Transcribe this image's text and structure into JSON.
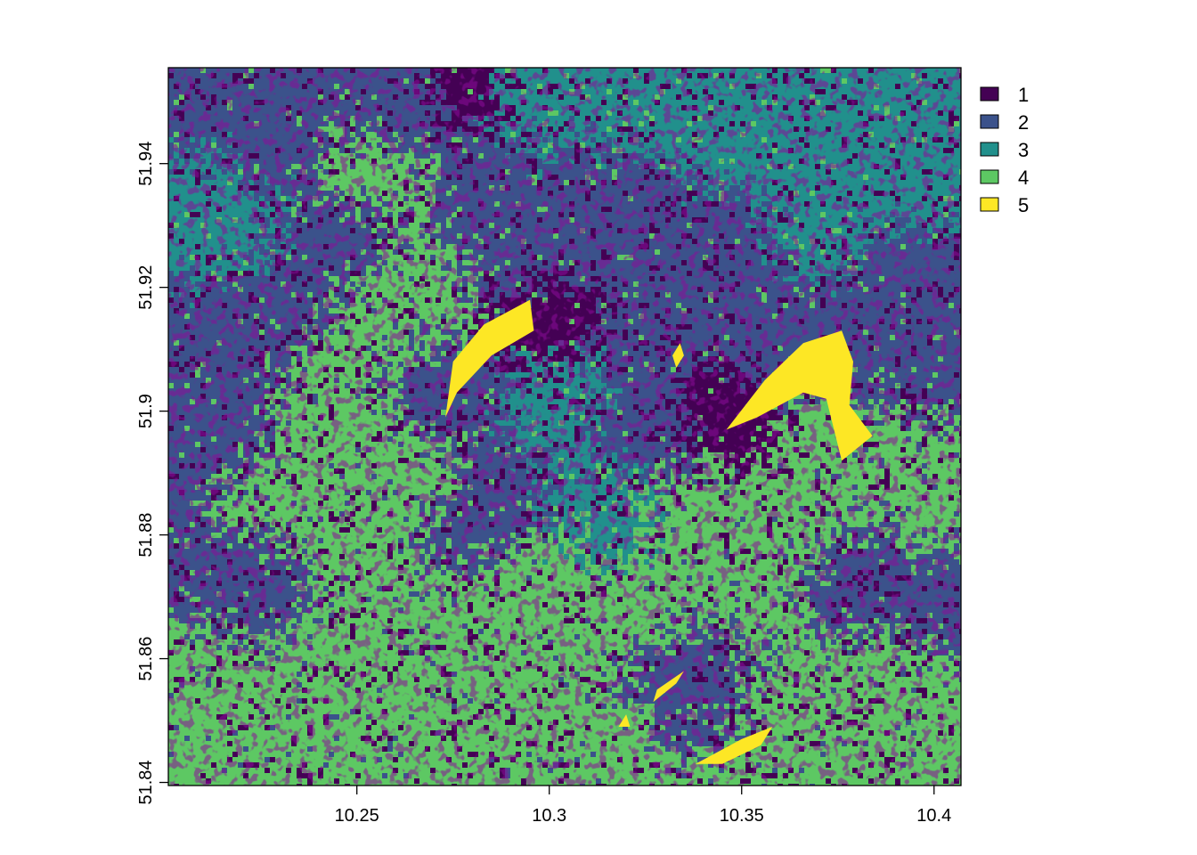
{
  "chart_data": {
    "type": "heatmap",
    "title": "",
    "xlabel": "",
    "ylabel": "",
    "xlim": [
      10.201,
      10.407
    ],
    "ylim": [
      51.8395,
      51.9555
    ],
    "x_ticks": [
      {
        "value": 10.25,
        "label": "10.25"
      },
      {
        "value": 10.3,
        "label": "10.3"
      },
      {
        "value": 10.35,
        "label": "10.35"
      },
      {
        "value": 10.4,
        "label": "10.4"
      }
    ],
    "y_ticks": [
      {
        "value": 51.84,
        "label": "51.84"
      },
      {
        "value": 51.86,
        "label": "51.86"
      },
      {
        "value": 51.88,
        "label": "51.88"
      },
      {
        "value": 51.9,
        "label": "51.9"
      },
      {
        "value": 51.92,
        "label": "51.92"
      },
      {
        "value": 51.94,
        "label": "51.94"
      }
    ],
    "legend": {
      "placement": "top-right",
      "classes": [
        {
          "value": 1,
          "label": "1",
          "color": "#440154"
        },
        {
          "value": 2,
          "label": "2",
          "color": "#3b528b"
        },
        {
          "value": 3,
          "label": "3",
          "color": "#21908c"
        },
        {
          "value": 4,
          "label": "4",
          "color": "#5dc863"
        },
        {
          "value": 5,
          "label": "5",
          "color": "#fde725"
        }
      ]
    },
    "regions": [
      {
        "class": 5,
        "points": [
          [
            10.275,
            51.908
          ],
          [
            10.283,
            51.914
          ],
          [
            10.295,
            51.918
          ],
          [
            10.296,
            51.913
          ],
          [
            10.285,
            51.909
          ],
          [
            10.276,
            51.903
          ],
          [
            10.273,
            51.899
          ]
        ]
      },
      {
        "class": 5,
        "points": [
          [
            10.346,
            51.897
          ],
          [
            10.356,
            51.905
          ],
          [
            10.366,
            51.911
          ],
          [
            10.376,
            51.913
          ],
          [
            10.379,
            51.908
          ],
          [
            10.378,
            51.901
          ],
          [
            10.384,
            51.896
          ],
          [
            10.376,
            51.892
          ],
          [
            10.372,
            51.902
          ],
          [
            10.366,
            51.903
          ],
          [
            10.354,
            51.899
          ]
        ]
      },
      {
        "class": 5,
        "points": [
          [
            10.328,
            51.855
          ],
          [
            10.335,
            51.858
          ],
          [
            10.333,
            51.856
          ],
          [
            10.327,
            51.853
          ]
        ]
      },
      {
        "class": 5,
        "points": [
          [
            10.338,
            51.843
          ],
          [
            10.35,
            51.847
          ],
          [
            10.358,
            51.849
          ],
          [
            10.355,
            51.846
          ],
          [
            10.345,
            51.843
          ]
        ]
      },
      {
        "class": 5,
        "points": [
          [
            10.318,
            51.849
          ],
          [
            10.32,
            51.851
          ],
          [
            10.321,
            51.849
          ]
        ]
      },
      {
        "class": 5,
        "points": [
          [
            10.332,
            51.909
          ],
          [
            10.334,
            51.911
          ],
          [
            10.335,
            51.909
          ],
          [
            10.333,
            51.907
          ]
        ]
      }
    ]
  }
}
